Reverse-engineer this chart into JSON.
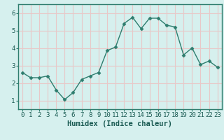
{
  "x": [
    0,
    1,
    2,
    3,
    4,
    5,
    6,
    7,
    8,
    9,
    10,
    11,
    12,
    13,
    14,
    15,
    16,
    17,
    18,
    19,
    20,
    21,
    22,
    23
  ],
  "y": [
    2.6,
    2.3,
    2.3,
    2.4,
    1.6,
    1.05,
    1.45,
    2.2,
    2.4,
    2.6,
    3.85,
    4.05,
    5.4,
    5.75,
    5.1,
    5.7,
    5.7,
    5.3,
    5.2,
    3.6,
    4.0,
    3.05,
    3.25,
    2.9
  ],
  "line_color": "#2e7d6e",
  "marker": "D",
  "marker_size": 2.5,
  "linewidth": 1.0,
  "xlabel": "Humidex (Indice chaleur)",
  "xlabel_fontsize": 7.5,
  "xlabel_fontweight": "bold",
  "ylim": [
    0.5,
    6.5
  ],
  "xlim": [
    -0.5,
    23.5
  ],
  "yticks": [
    1,
    2,
    3,
    4,
    5,
    6
  ],
  "xticks": [
    0,
    1,
    2,
    3,
    4,
    5,
    6,
    7,
    8,
    9,
    10,
    11,
    12,
    13,
    14,
    15,
    16,
    17,
    18,
    19,
    20,
    21,
    22,
    23
  ],
  "bg_color": "#d6f0ee",
  "grid_color": "#e8c8c8",
  "tick_fontsize": 6.5,
  "border_color": "#2e7d6e"
}
